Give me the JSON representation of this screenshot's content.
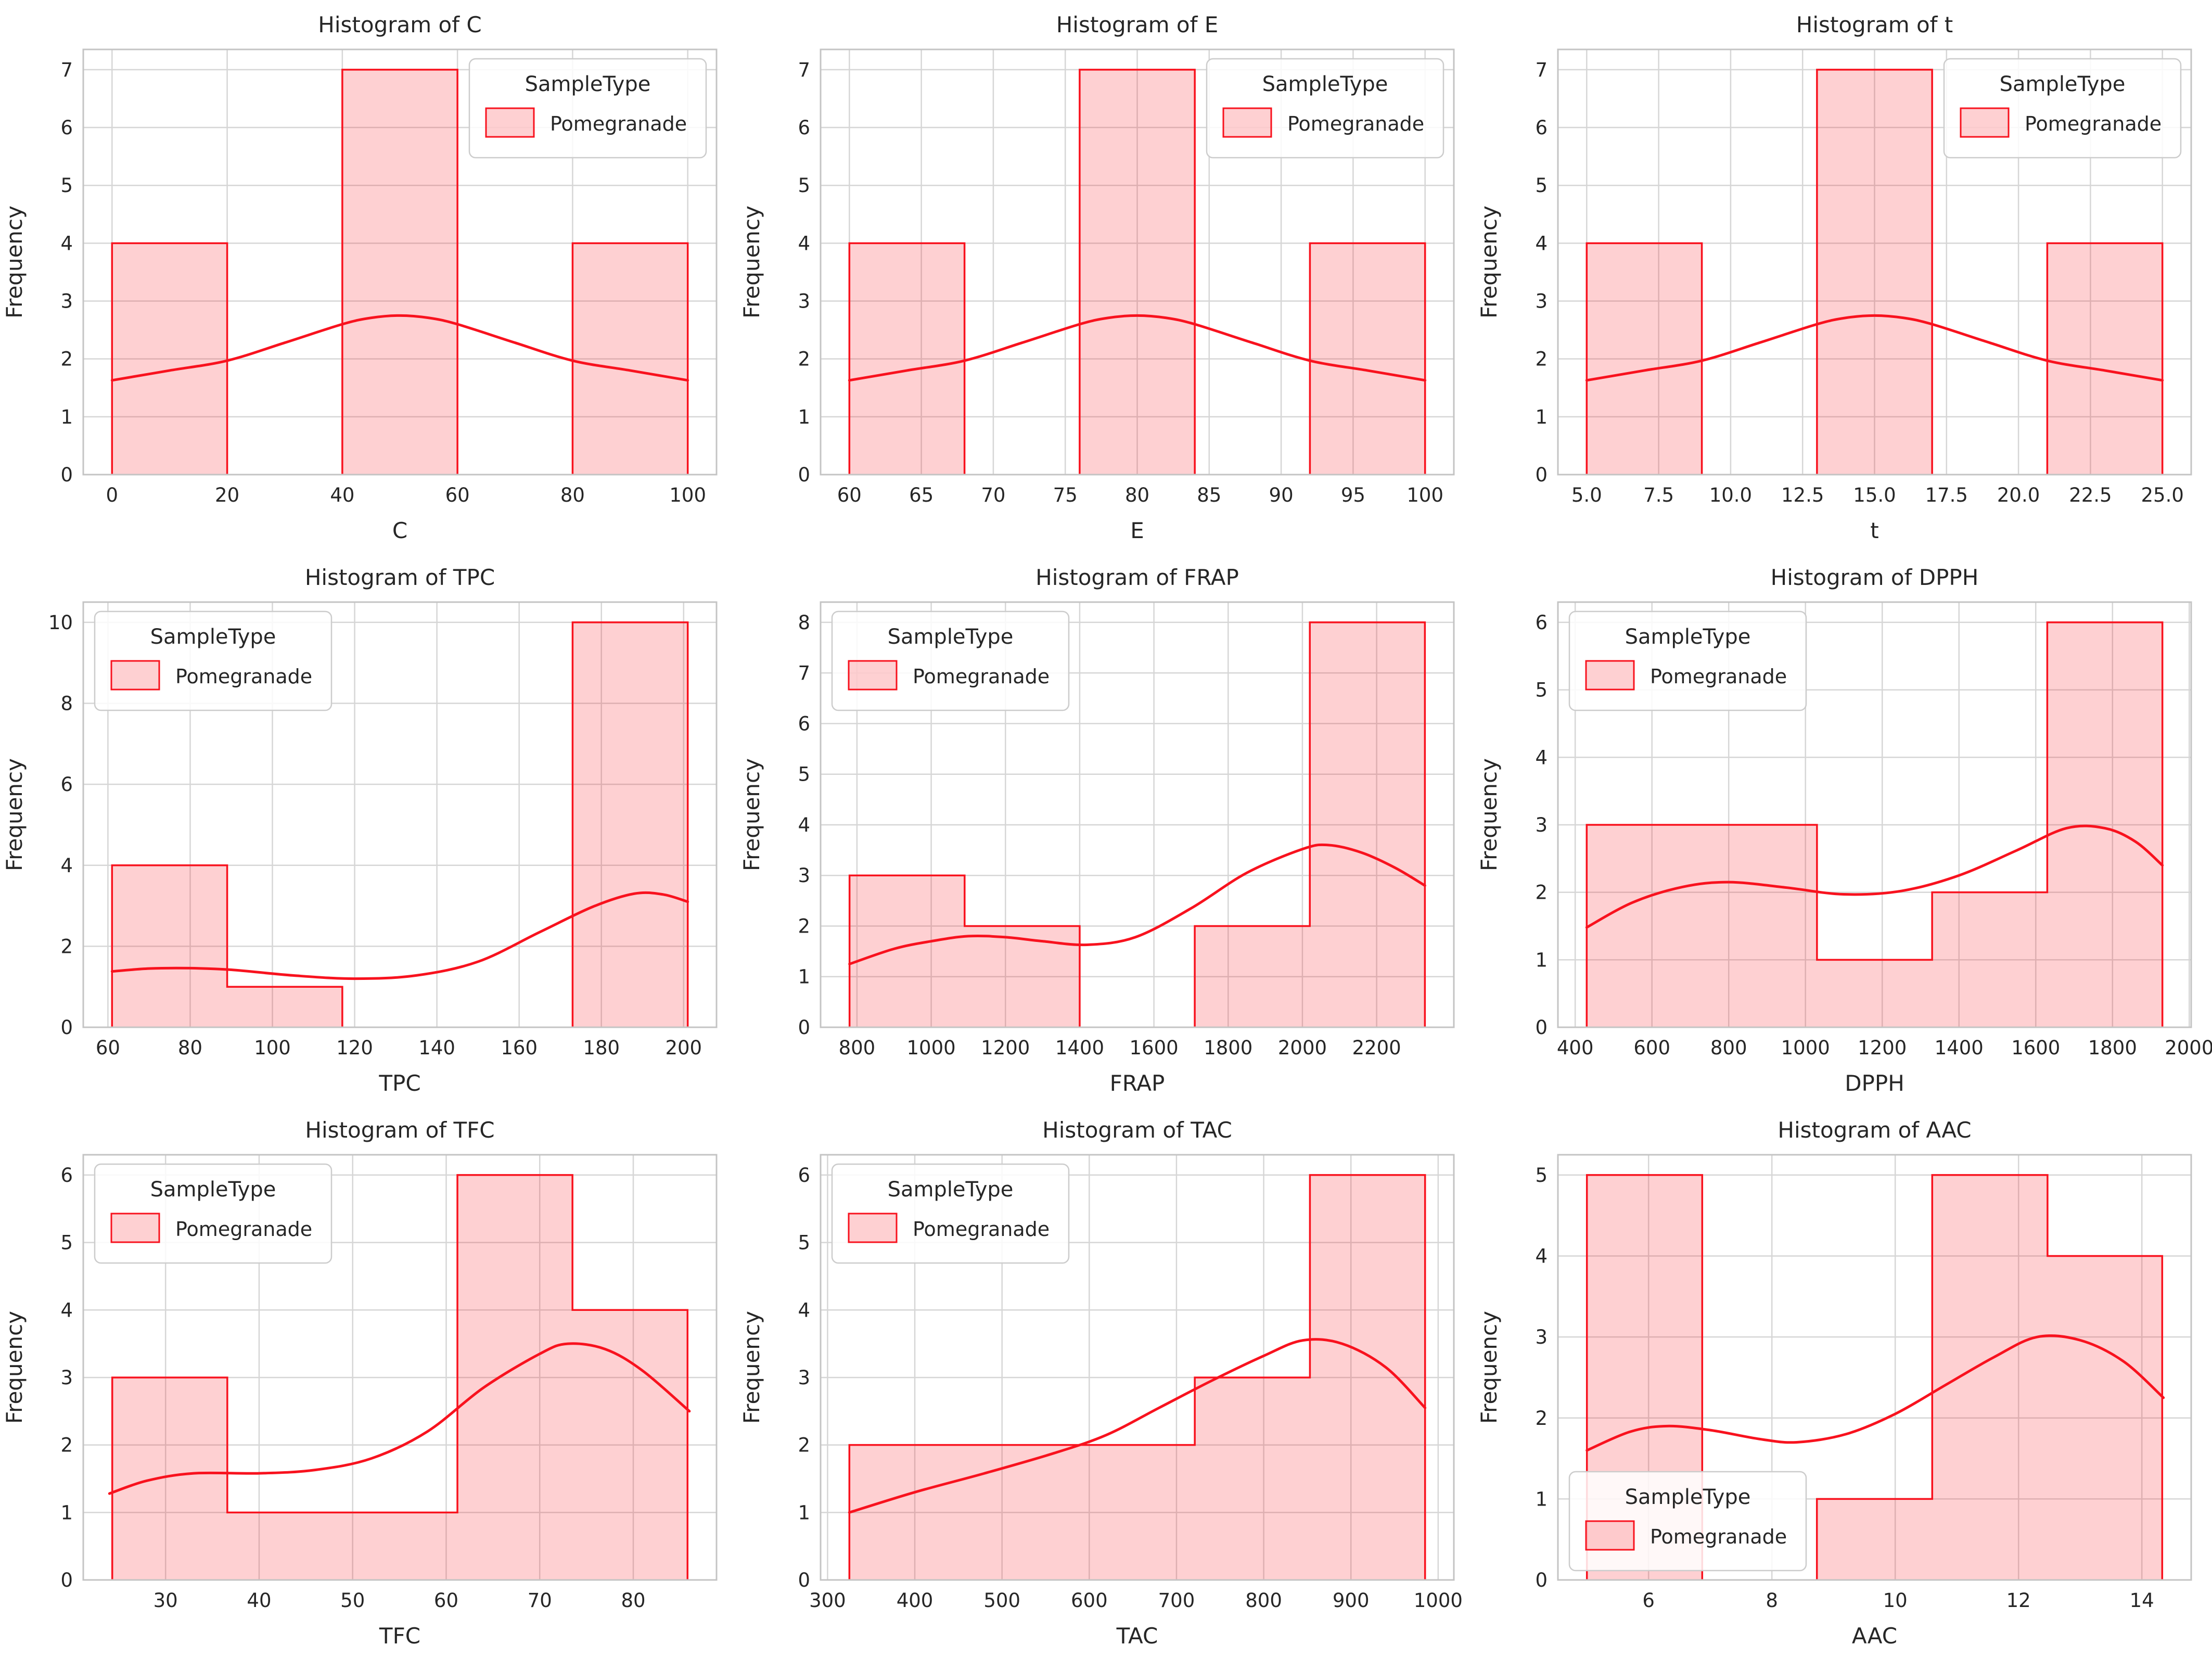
{
  "figure": {
    "rows": 3,
    "cols": 3,
    "background": "#ffffff"
  },
  "style": {
    "accent_red": "#f8121e",
    "bar_fill_red": "#f8121e",
    "bar_fill_opacity": 0.2,
    "grid_color": "#d6d6d6",
    "spine_color": "#c4c4c4",
    "text_color": "#262626",
    "legend_border": "#cccccc",
    "legend_bg": "#ffffff"
  },
  "legend": {
    "title": "SampleType",
    "entry_label": "Pomegranade"
  },
  "chart_data": [
    {
      "type": "histogram+kde",
      "title": "Histogram of C",
      "xlabel": "C",
      "ylabel": "Frequency",
      "xlim": [
        -5,
        105
      ],
      "ylim": [
        0,
        7.35
      ],
      "xticks": [
        0,
        20,
        40,
        60,
        80,
        100
      ],
      "xtick_labels": [
        "0",
        "20",
        "40",
        "60",
        "80",
        "100"
      ],
      "yticks": [
        0,
        1,
        2,
        3,
        4,
        5,
        6,
        7
      ],
      "ytick_labels": [
        "0",
        "1",
        "2",
        "3",
        "4",
        "5",
        "6",
        "7"
      ],
      "bins": [
        [
          0,
          20,
          4
        ],
        [
          40,
          60,
          7
        ],
        [
          80,
          100,
          4
        ]
      ],
      "kde": [
        [
          0,
          1.63
        ],
        [
          10,
          1.8
        ],
        [
          20,
          1.97
        ],
        [
          30,
          2.28
        ],
        [
          40,
          2.6
        ],
        [
          45,
          2.71
        ],
        [
          50,
          2.75
        ],
        [
          55,
          2.71
        ],
        [
          60,
          2.6
        ],
        [
          70,
          2.28
        ],
        [
          80,
          1.97
        ],
        [
          90,
          1.8
        ],
        [
          100,
          1.63
        ]
      ],
      "legend_pos": "top-right"
    },
    {
      "type": "histogram+kde",
      "title": "Histogram of E",
      "xlabel": "E",
      "ylabel": "Frequency",
      "xlim": [
        58,
        102
      ],
      "ylim": [
        0,
        7.35
      ],
      "xticks": [
        60,
        65,
        70,
        75,
        80,
        85,
        90,
        95,
        100
      ],
      "xtick_labels": [
        "60",
        "65",
        "70",
        "75",
        "80",
        "85",
        "90",
        "95",
        "100"
      ],
      "yticks": [
        0,
        1,
        2,
        3,
        4,
        5,
        6,
        7
      ],
      "ytick_labels": [
        "0",
        "1",
        "2",
        "3",
        "4",
        "5",
        "6",
        "7"
      ],
      "bins": [
        [
          60,
          68,
          4
        ],
        [
          76,
          84,
          7
        ],
        [
          92,
          100,
          4
        ]
      ],
      "kde": [
        [
          60,
          1.63
        ],
        [
          64,
          1.8
        ],
        [
          68,
          1.97
        ],
        [
          72,
          2.28
        ],
        [
          76,
          2.6
        ],
        [
          78,
          2.71
        ],
        [
          80,
          2.75
        ],
        [
          82,
          2.71
        ],
        [
          84,
          2.6
        ],
        [
          88,
          2.28
        ],
        [
          92,
          1.97
        ],
        [
          96,
          1.8
        ],
        [
          100,
          1.63
        ]
      ],
      "legend_pos": "top-right"
    },
    {
      "type": "histogram+kde",
      "title": "Histogram of t",
      "xlabel": "t",
      "ylabel": "Frequency",
      "xlim": [
        4,
        26
      ],
      "ylim": [
        0,
        7.35
      ],
      "xticks": [
        5,
        7.5,
        10,
        12.5,
        15,
        17.5,
        20,
        22.5,
        25
      ],
      "xtick_labels": [
        "5.0",
        "7.5",
        "10.0",
        "12.5",
        "15.0",
        "17.5",
        "20.0",
        "22.5",
        "25.0"
      ],
      "yticks": [
        0,
        1,
        2,
        3,
        4,
        5,
        6,
        7
      ],
      "ytick_labels": [
        "0",
        "1",
        "2",
        "3",
        "4",
        "5",
        "6",
        "7"
      ],
      "bins": [
        [
          5,
          9,
          4
        ],
        [
          13,
          17,
          7
        ],
        [
          21,
          25,
          4
        ]
      ],
      "kde": [
        [
          5,
          1.63
        ],
        [
          7,
          1.8
        ],
        [
          9,
          1.97
        ],
        [
          11,
          2.28
        ],
        [
          13,
          2.6
        ],
        [
          14,
          2.71
        ],
        [
          15,
          2.75
        ],
        [
          16,
          2.71
        ],
        [
          17,
          2.6
        ],
        [
          19,
          2.28
        ],
        [
          21,
          1.97
        ],
        [
          23,
          1.8
        ],
        [
          25,
          1.63
        ]
      ],
      "legend_pos": "top-right"
    },
    {
      "type": "histogram+kde",
      "title": "Histogram of TPC",
      "xlabel": "TPC",
      "ylabel": "Frequency",
      "xlim": [
        54,
        208
      ],
      "ylim": [
        0,
        10.5
      ],
      "xticks": [
        60,
        80,
        100,
        120,
        140,
        160,
        180,
        200
      ],
      "xtick_labels": [
        "60",
        "80",
        "100",
        "120",
        "140",
        "160",
        "180",
        "200"
      ],
      "yticks": [
        0,
        2,
        4,
        6,
        8,
        10
      ],
      "ytick_labels": [
        "0",
        "2",
        "4",
        "6",
        "8",
        "10"
      ],
      "bins": [
        [
          61,
          89,
          4
        ],
        [
          89,
          117,
          1
        ],
        [
          173,
          201,
          10
        ]
      ],
      "kde": [
        [
          61,
          1.38
        ],
        [
          70,
          1.45
        ],
        [
          80,
          1.46
        ],
        [
          90,
          1.42
        ],
        [
          105,
          1.28
        ],
        [
          120,
          1.2
        ],
        [
          135,
          1.28
        ],
        [
          150,
          1.62
        ],
        [
          165,
          2.35
        ],
        [
          178,
          2.98
        ],
        [
          188,
          3.3
        ],
        [
          195,
          3.28
        ],
        [
          201,
          3.1
        ]
      ],
      "legend_pos": "top-left"
    },
    {
      "type": "histogram+kde",
      "title": "Histogram of FRAP",
      "xlabel": "FRAP",
      "ylabel": "Frequency",
      "xlim": [
        702,
        2408
      ],
      "ylim": [
        0,
        8.4
      ],
      "xticks": [
        800,
        1000,
        1200,
        1400,
        1600,
        1800,
        2000,
        2200
      ],
      "xtick_labels": [
        "800",
        "1000",
        "1200",
        "1400",
        "1600",
        "1800",
        "2000",
        "2200"
      ],
      "yticks": [
        0,
        1,
        2,
        3,
        4,
        5,
        6,
        7,
        8
      ],
      "ytick_labels": [
        "0",
        "1",
        "2",
        "3",
        "4",
        "5",
        "6",
        "7",
        "8"
      ],
      "bins": [
        [
          780,
          1090,
          3
        ],
        [
          1090,
          1400,
          2
        ],
        [
          1710,
          2020,
          2
        ],
        [
          2020,
          2330,
          8
        ]
      ],
      "kde": [
        [
          780,
          1.25
        ],
        [
          900,
          1.55
        ],
        [
          1000,
          1.7
        ],
        [
          1100,
          1.8
        ],
        [
          1200,
          1.78
        ],
        [
          1300,
          1.7
        ],
        [
          1420,
          1.63
        ],
        [
          1550,
          1.78
        ],
        [
          1700,
          2.35
        ],
        [
          1850,
          3.05
        ],
        [
          2000,
          3.52
        ],
        [
          2070,
          3.6
        ],
        [
          2160,
          3.45
        ],
        [
          2250,
          3.15
        ],
        [
          2330,
          2.8
        ]
      ],
      "legend_pos": "top-left"
    },
    {
      "type": "histogram+kde",
      "title": "Histogram of DPPH",
      "xlabel": "DPPH",
      "ylabel": "Frequency",
      "xlim": [
        355,
        2005
      ],
      "ylim": [
        0,
        6.3
      ],
      "xticks": [
        400,
        600,
        800,
        1000,
        1200,
        1400,
        1600,
        1800,
        2000
      ],
      "xtick_labels": [
        "400",
        "600",
        "800",
        "1000",
        "1200",
        "1400",
        "1600",
        "1800",
        "2000"
      ],
      "yticks": [
        0,
        1,
        2,
        3,
        4,
        5,
        6
      ],
      "ytick_labels": [
        "0",
        "1",
        "2",
        "3",
        "4",
        "5",
        "6"
      ],
      "bins": [
        [
          430,
          1030,
          3
        ],
        [
          1030,
          1330,
          1
        ],
        [
          1330,
          1630,
          2
        ],
        [
          1630,
          1930,
          6
        ]
      ],
      "kde": [
        [
          430,
          1.48
        ],
        [
          550,
          1.85
        ],
        [
          680,
          2.08
        ],
        [
          800,
          2.15
        ],
        [
          950,
          2.07
        ],
        [
          1100,
          1.97
        ],
        [
          1250,
          2.02
        ],
        [
          1400,
          2.25
        ],
        [
          1550,
          2.62
        ],
        [
          1680,
          2.95
        ],
        [
          1780,
          2.95
        ],
        [
          1860,
          2.75
        ],
        [
          1930,
          2.4
        ]
      ],
      "legend_pos": "top-left"
    },
    {
      "type": "histogram+kde",
      "title": "Histogram of TFC",
      "xlabel": "TFC",
      "ylabel": "Frequency",
      "xlim": [
        21.2,
        88.9
      ],
      "ylim": [
        0,
        6.3
      ],
      "xticks": [
        30,
        40,
        50,
        60,
        70,
        80
      ],
      "xtick_labels": [
        "30",
        "40",
        "50",
        "60",
        "70",
        "80"
      ],
      "yticks": [
        0,
        1,
        2,
        3,
        4,
        5,
        6
      ],
      "ytick_labels": [
        "0",
        "1",
        "2",
        "3",
        "4",
        "5",
        "6"
      ],
      "bins": [
        [
          24.3,
          36.6,
          3
        ],
        [
          36.6,
          61.2,
          1
        ],
        [
          61.2,
          73.5,
          6
        ],
        [
          73.5,
          85.8,
          4
        ]
      ],
      "kde": [
        [
          24,
          1.28
        ],
        [
          28,
          1.47
        ],
        [
          33,
          1.58
        ],
        [
          40,
          1.58
        ],
        [
          46,
          1.63
        ],
        [
          52,
          1.8
        ],
        [
          58,
          2.2
        ],
        [
          64,
          2.85
        ],
        [
          70,
          3.35
        ],
        [
          73,
          3.5
        ],
        [
          77,
          3.42
        ],
        [
          81,
          3.1
        ],
        [
          86,
          2.5
        ]
      ],
      "legend_pos": "top-left"
    },
    {
      "type": "histogram+kde",
      "title": "Histogram of TAC",
      "xlabel": "TAC",
      "ylabel": "Frequency",
      "xlim": [
        292,
        1018
      ],
      "ylim": [
        0,
        6.3
      ],
      "xticks": [
        300,
        400,
        500,
        600,
        700,
        800,
        900,
        1000
      ],
      "xtick_labels": [
        "300",
        "400",
        "500",
        "600",
        "700",
        "800",
        "900",
        "1000"
      ],
      "yticks": [
        0,
        1,
        2,
        3,
        4,
        5,
        6
      ],
      "ytick_labels": [
        "0",
        "1",
        "2",
        "3",
        "4",
        "5",
        "6"
      ],
      "bins": [
        [
          325,
          721,
          2
        ],
        [
          721,
          853,
          3
        ],
        [
          853,
          985,
          6
        ]
      ],
      "kde": [
        [
          325,
          1.0
        ],
        [
          400,
          1.3
        ],
        [
          480,
          1.58
        ],
        [
          560,
          1.88
        ],
        [
          620,
          2.15
        ],
        [
          680,
          2.55
        ],
        [
          740,
          2.95
        ],
        [
          800,
          3.32
        ],
        [
          845,
          3.55
        ],
        [
          890,
          3.5
        ],
        [
          940,
          3.15
        ],
        [
          985,
          2.55
        ]
      ],
      "legend_pos": "top-left"
    },
    {
      "type": "histogram+kde",
      "title": "Histogram of AAC",
      "xlabel": "AAC",
      "ylabel": "Frequency",
      "xlim": [
        4.53,
        14.8
      ],
      "ylim": [
        0,
        5.25
      ],
      "xticks": [
        6,
        8,
        10,
        12,
        14
      ],
      "xtick_labels": [
        "6",
        "8",
        "10",
        "12",
        "14"
      ],
      "yticks": [
        0,
        1,
        2,
        3,
        4,
        5
      ],
      "ytick_labels": [
        "0",
        "1",
        "2",
        "3",
        "4",
        "5"
      ],
      "bins": [
        [
          5.0,
          6.87,
          5
        ],
        [
          8.73,
          10.6,
          1
        ],
        [
          10.6,
          12.47,
          5
        ],
        [
          12.47,
          14.33,
          4
        ]
      ],
      "kde": [
        [
          5.0,
          1.6
        ],
        [
          5.7,
          1.83
        ],
        [
          6.3,
          1.9
        ],
        [
          7.0,
          1.85
        ],
        [
          7.8,
          1.74
        ],
        [
          8.4,
          1.7
        ],
        [
          9.2,
          1.8
        ],
        [
          10.0,
          2.05
        ],
        [
          10.8,
          2.4
        ],
        [
          11.6,
          2.75
        ],
        [
          12.3,
          3.0
        ],
        [
          13.0,
          2.96
        ],
        [
          13.7,
          2.7
        ],
        [
          14.35,
          2.25
        ]
      ],
      "legend_pos": "bottom-left"
    }
  ]
}
